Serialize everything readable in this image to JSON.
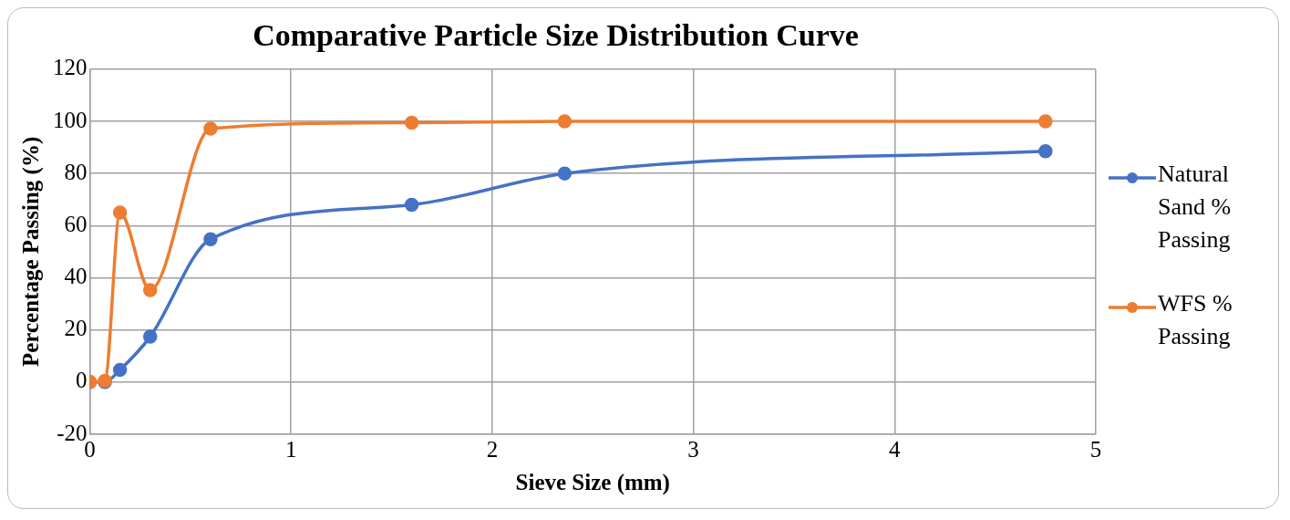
{
  "chart_data": {
    "type": "line",
    "title": "Comparative Particle Size Distribution Curve",
    "xlabel": "Sieve Size (mm)",
    "ylabel": "Percentage Passing (%)",
    "x": [
      0,
      0.075,
      0.15,
      0.3,
      0.6,
      1.6,
      2.36,
      4.75
    ],
    "series": [
      {
        "name": "Natural Sand % Passing",
        "color": "#4472c4",
        "values": [
          0,
          0,
          4.7,
          17.4,
          54.8,
          68,
          80,
          88.5
        ]
      },
      {
        "name": "WFS % Passing",
        "color": "#ed7d31",
        "values": [
          0,
          0.5,
          65,
          35.3,
          97.2,
          99.5,
          100,
          100
        ]
      }
    ],
    "xlim": [
      0,
      5
    ],
    "xticks": [
      0,
      1,
      2,
      3,
      4,
      5
    ],
    "ylim": [
      -20,
      120
    ],
    "yticks": [
      -20,
      0,
      20,
      40,
      60,
      80,
      100,
      120
    ],
    "grid": true,
    "legend": "right",
    "marker": "circle",
    "line_style": "solid"
  }
}
